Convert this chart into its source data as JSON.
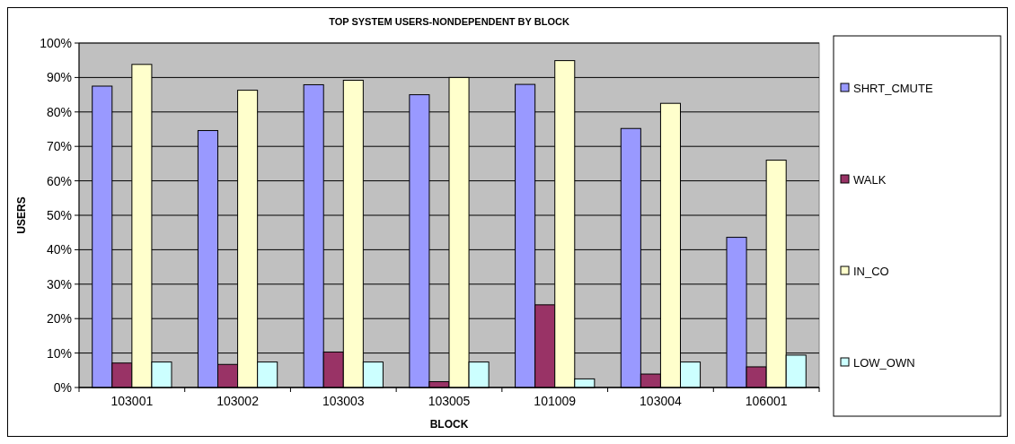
{
  "chart_data": {
    "type": "bar",
    "title": "TOP SYSTEM USERS-NONDEPENDENT BY BLOCK",
    "xlabel": "BLOCK",
    "ylabel": "USERS",
    "categories": [
      "103001",
      "103002",
      "103003",
      "103005",
      "101009",
      "103004",
      "106001"
    ],
    "series": [
      {
        "name": "SHRT_CMUTE",
        "color": "#9999ff",
        "values": [
          87.5,
          74.6,
          87.9,
          85.0,
          88.0,
          75.2,
          43.6
        ]
      },
      {
        "name": "WALK",
        "color": "#993366",
        "values": [
          7.1,
          6.7,
          10.3,
          1.7,
          24.0,
          3.9,
          6.0
        ]
      },
      {
        "name": "IN_CO",
        "color": "#ffffcc",
        "values": [
          93.8,
          86.3,
          89.2,
          90.0,
          94.9,
          82.5,
          66.0
        ]
      },
      {
        "name": "LOW_OWN",
        "color": "#ccffff",
        "values": [
          7.4,
          7.4,
          7.4,
          7.4,
          2.5,
          7.4,
          9.4
        ]
      }
    ],
    "ylim": [
      0,
      100
    ],
    "yticks": [
      {
        "value": 0,
        "label": "0%"
      },
      {
        "value": 10,
        "label": "10%"
      },
      {
        "value": 20,
        "label": "20%"
      },
      {
        "value": 30,
        "label": "30%"
      },
      {
        "value": 40,
        "label": "40%"
      },
      {
        "value": 50,
        "label": "50%"
      },
      {
        "value": 60,
        "label": "60%"
      },
      {
        "value": 70,
        "label": "70%"
      },
      {
        "value": 80,
        "label": "80%"
      },
      {
        "value": 90,
        "label": "90%"
      },
      {
        "value": 100,
        "label": "100%"
      }
    ],
    "grid": "y",
    "legend": "right"
  }
}
